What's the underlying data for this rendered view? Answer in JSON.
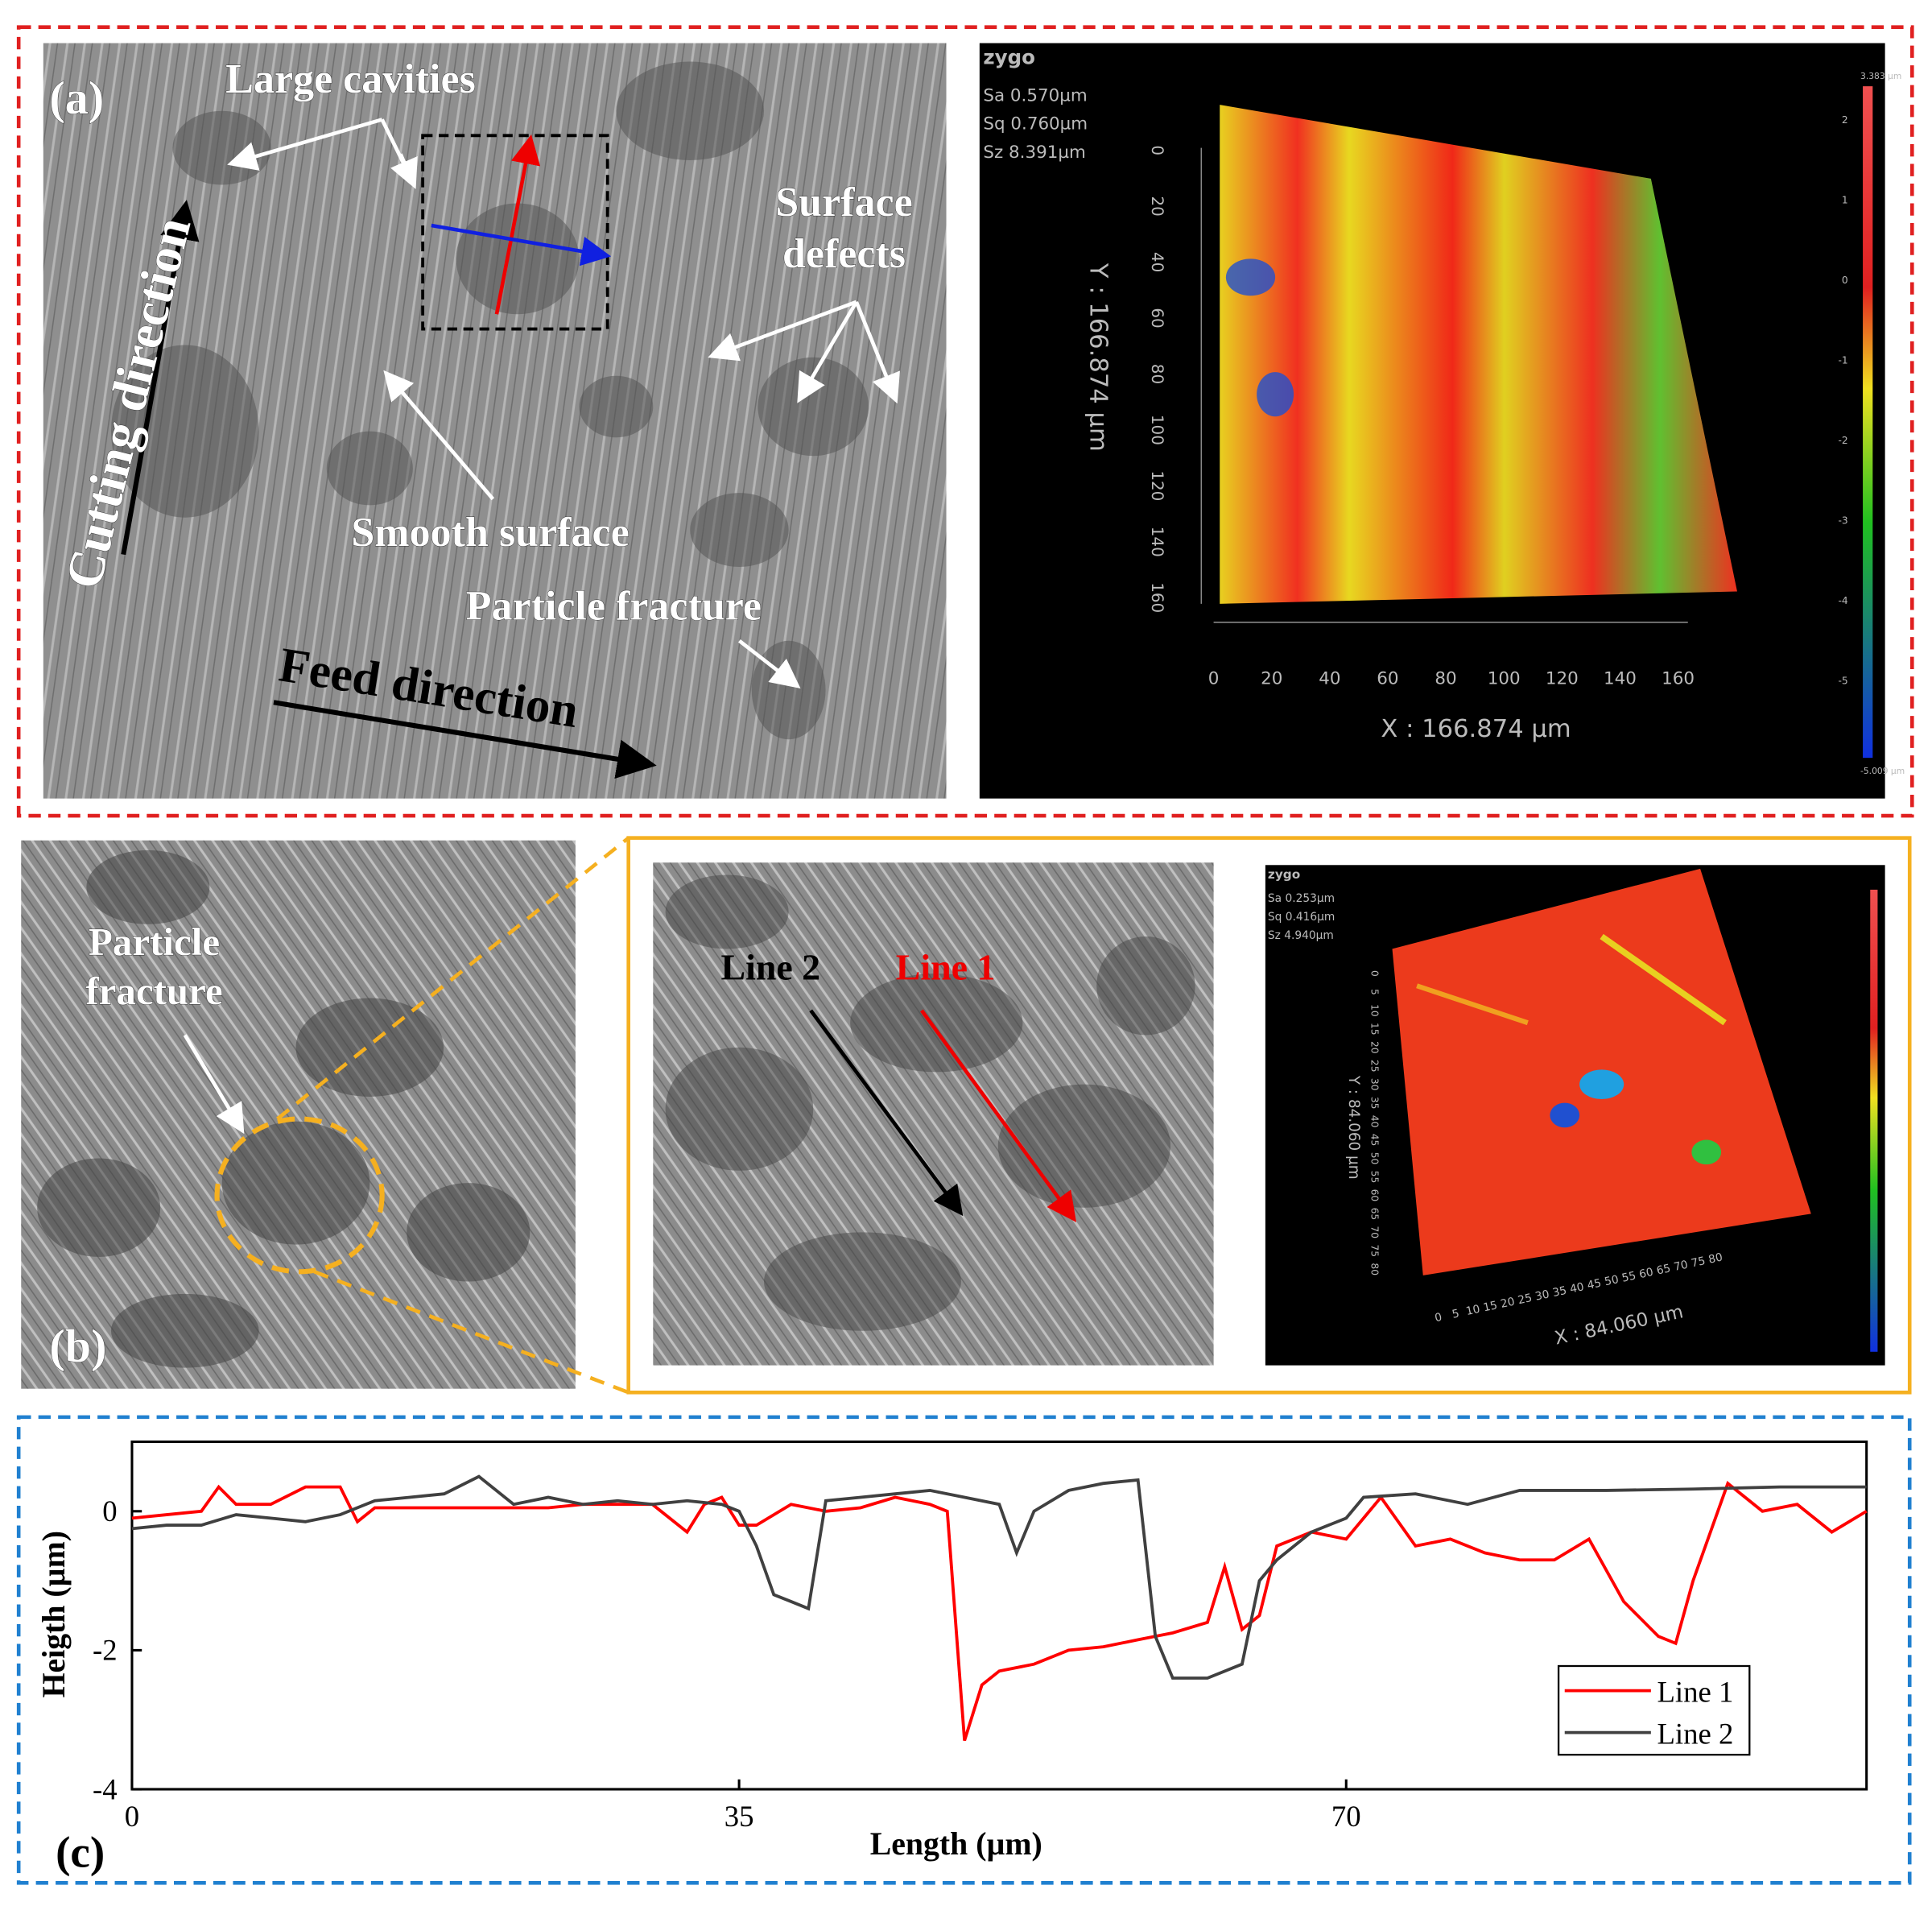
{
  "panel_a": {
    "label": "(a)",
    "micrograph": {
      "large_cavities": "Large cavities",
      "cutting_direction": "Cutting direction",
      "surface_defects": [
        "Surface",
        "defects"
      ],
      "smooth_surface": "Smooth surface",
      "particle_fracture": "Particle fracture",
      "feed_direction": "Feed direction"
    },
    "profile_3d": {
      "brand": "zygo",
      "stats": [
        "Sa 0.570µm",
        "Sq 0.760µm",
        "Sz 8.391µm"
      ],
      "y_ticks": [
        0,
        20,
        40,
        60,
        80,
        100,
        120,
        140,
        160
      ],
      "y_label": "Y : 166.874 µm",
      "x_ticks": [
        0,
        20,
        40,
        60,
        80,
        100,
        120,
        140,
        160
      ],
      "x_label": "X : 166.874 µm",
      "colorbar_max": "3.383 µm",
      "colorbar_ticks": [
        2,
        1,
        0,
        -1,
        -2,
        -3,
        -4,
        -5
      ],
      "colorbar_min": "-5.009 µm"
    }
  },
  "panel_b": {
    "label": "(b)",
    "particle_fracture": [
      "Particle",
      "fracture"
    ],
    "line_2": "Line 2",
    "line_1": "Line 1",
    "profile_3d": {
      "brand": "zygo",
      "stats": [
        "Sa 0.253µm",
        "Sq 0.416µm",
        "Sz 4.940µm"
      ],
      "y_ticks": [
        0,
        5,
        10,
        15,
        20,
        25,
        30,
        35,
        40,
        45,
        50,
        55,
        60,
        65,
        70,
        75,
        80
      ],
      "y_label": "Y : 84.060 µm",
      "x_ticks": [
        0,
        5,
        10,
        15,
        20,
        25,
        30,
        35,
        40,
        45,
        50,
        55,
        60,
        65,
        70,
        75,
        80
      ],
      "x_label": "X : 84.060 µm"
    }
  },
  "panel_c": {
    "label": "(c)"
  },
  "chart_data": {
    "type": "line",
    "xlabel": "Length (µm)",
    "ylabel": "Heigth (µm)",
    "xlim": [
      0,
      100
    ],
    "ylim": [
      -4,
      1
    ],
    "xticks": [
      0,
      35,
      70
    ],
    "yticks": [
      -4,
      -2,
      0
    ],
    "legend": "lower right",
    "series": [
      {
        "name": "Line 1",
        "color": "#ff0000",
        "x": [
          0,
          2,
          4,
          5,
          6,
          8,
          10,
          12,
          13,
          14,
          16,
          18,
          20,
          22,
          24,
          26,
          28,
          30,
          32,
          33,
          34,
          35,
          36,
          38,
          40,
          42,
          44,
          46,
          47,
          48,
          49,
          50,
          52,
          54,
          56,
          58,
          60,
          62,
          63,
          64,
          65,
          66,
          68,
          70,
          72,
          74,
          76,
          78,
          80,
          82,
          84,
          86,
          88,
          89,
          90,
          92,
          94,
          96,
          98,
          100
        ],
        "values": [
          -0.1,
          -0.05,
          0,
          0.35,
          0.1,
          0.1,
          0.35,
          0.35,
          -0.15,
          0.05,
          0.05,
          0.05,
          0.05,
          0.05,
          0.05,
          0.1,
          0.1,
          0.1,
          -0.3,
          0.1,
          0.2,
          -0.2,
          -0.2,
          0.1,
          0,
          0.05,
          0.2,
          0.1,
          0,
          -3.3,
          -2.5,
          -2.3,
          -2.2,
          -2,
          -1.95,
          -1.85,
          -1.75,
          -1.6,
          -0.8,
          -1.7,
          -1.5,
          -0.5,
          -0.3,
          -0.4,
          0.2,
          -0.5,
          -0.4,
          -0.6,
          -0.7,
          -0.7,
          -0.4,
          -1.3,
          -1.8,
          -1.9,
          -1.0,
          0.4,
          0,
          0.1,
          -0.3,
          0
        ]
      },
      {
        "name": "Line 2",
        "color": "#404040",
        "x": [
          0,
          2,
          4,
          6,
          8,
          10,
          12,
          14,
          16,
          18,
          20,
          22,
          24,
          26,
          28,
          30,
          32,
          34,
          35,
          36,
          37,
          38,
          39,
          40,
          42,
          44,
          46,
          48,
          50,
          51,
          52,
          54,
          56,
          58,
          59,
          60,
          62,
          64,
          65,
          66,
          68,
          70,
          71,
          74,
          77,
          80,
          85,
          90,
          95,
          100
        ],
        "values": [
          -0.25,
          -0.2,
          -0.2,
          -0.05,
          -0.1,
          -0.15,
          -0.05,
          0.15,
          0.2,
          0.25,
          0.5,
          0.1,
          0.2,
          0.1,
          0.15,
          0.1,
          0.15,
          0.1,
          0,
          -0.5,
          -1.2,
          -1.3,
          -1.4,
          0.15,
          0.2,
          0.25,
          0.3,
          0.2,
          0.1,
          -0.6,
          0,
          0.3,
          0.4,
          0.45,
          -1.8,
          -2.4,
          -2.4,
          -2.2,
          -1.0,
          -0.7,
          -0.3,
          -0.1,
          0.2,
          0.25,
          0.1,
          0.3,
          0.3,
          0.32,
          0.35,
          0.35
        ]
      }
    ]
  }
}
